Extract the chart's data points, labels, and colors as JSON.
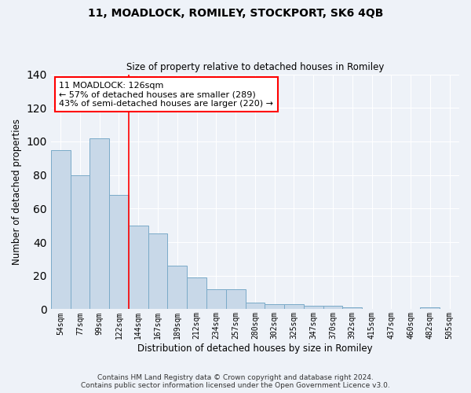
{
  "title": "11, MOADLOCK, ROMILEY, STOCKPORT, SK6 4QB",
  "subtitle": "Size of property relative to detached houses in Romiley",
  "xlabel": "Distribution of detached houses by size in Romiley",
  "ylabel": "Number of detached properties",
  "categories": [
    "54sqm",
    "77sqm",
    "99sqm",
    "122sqm",
    "144sqm",
    "167sqm",
    "189sqm",
    "212sqm",
    "234sqm",
    "257sqm",
    "280sqm",
    "302sqm",
    "325sqm",
    "347sqm",
    "370sqm",
    "392sqm",
    "415sqm",
    "437sqm",
    "460sqm",
    "482sqm",
    "505sqm"
  ],
  "values": [
    95,
    80,
    102,
    68,
    50,
    45,
    26,
    19,
    12,
    12,
    4,
    3,
    3,
    2,
    2,
    1,
    0,
    0,
    0,
    1,
    0
  ],
  "bar_color": "#c8d8e8",
  "bar_edge_color": "#7aaac8",
  "red_line_x": 3.5,
  "annotation_text": "11 MOADLOCK: 126sqm\n← 57% of detached houses are smaller (289)\n43% of semi-detached houses are larger (220) →",
  "annotation_box_color": "white",
  "annotation_box_edge_color": "red",
  "red_line_color": "red",
  "ylim": [
    0,
    140
  ],
  "yticks": [
    0,
    20,
    40,
    60,
    80,
    100,
    120,
    140
  ],
  "background_color": "#eef2f8",
  "grid_color": "#ffffff",
  "footer_line1": "Contains HM Land Registry data © Crown copyright and database right 2024.",
  "footer_line2": "Contains public sector information licensed under the Open Government Licence v3.0."
}
